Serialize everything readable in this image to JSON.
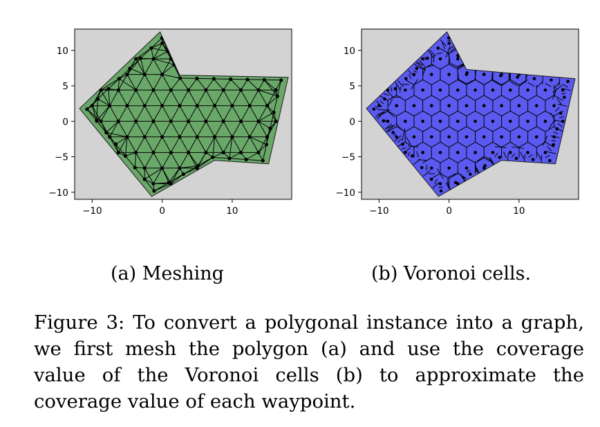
{
  "chart_data": [
    {
      "type": "scatter",
      "panel": "a",
      "title": "",
      "xlabel": "",
      "ylabel": "",
      "xlim": [
        -12.5,
        18.5
      ],
      "ylim": [
        -11,
        13
      ],
      "xticks": [
        -10,
        0,
        10
      ],
      "yticks": [
        -10,
        -5,
        0,
        5,
        10
      ],
      "xtick_labels": [
        "−10",
        "0",
        "10"
      ],
      "ytick_labels": [
        "−10",
        "−5",
        "0",
        "5",
        "10"
      ],
      "grid": false,
      "polygon_fill": "#6aa86a",
      "background": "#d3d3d3",
      "polygon": [
        [
          -11.8,
          1.8
        ],
        [
          -0.3,
          12.6
        ],
        [
          2.5,
          6.5
        ],
        [
          18,
          6.2
        ],
        [
          15.2,
          -6
        ],
        [
          7.5,
          -5.5
        ],
        [
          -1.5,
          -10.6
        ]
      ],
      "caption": "(a) Meshing"
    },
    {
      "type": "scatter",
      "panel": "b",
      "title": "",
      "xlabel": "",
      "ylabel": "",
      "xlim": [
        -12.5,
        18.5
      ],
      "ylim": [
        -11,
        13
      ],
      "xticks": [
        -10,
        0,
        10
      ],
      "yticks": [
        -10,
        -5,
        0,
        5,
        10
      ],
      "xtick_labels": [
        "−10",
        "0",
        "10"
      ],
      "ytick_labels": [
        "−10",
        "−5",
        "0",
        "5",
        "10"
      ],
      "grid": false,
      "polygon_fill": "#5a5af0",
      "background": "#d3d3d3",
      "polygon": [
        [
          -11.8,
          1.8
        ],
        [
          -0.3,
          12.6
        ],
        [
          2.5,
          7.3
        ],
        [
          18,
          6
        ],
        [
          15.2,
          -6
        ],
        [
          7.5,
          -5.5
        ],
        [
          -1.5,
          -10.6
        ]
      ],
      "caption": "(b) Voronoi cells."
    }
  ],
  "figure_caption": "Figure 3: To convert a polygonal instance into a graph, we first mesh the polygon (a) and use the coverage value of the Voronoi cells (b) to approximate the coverage value of each waypoint."
}
